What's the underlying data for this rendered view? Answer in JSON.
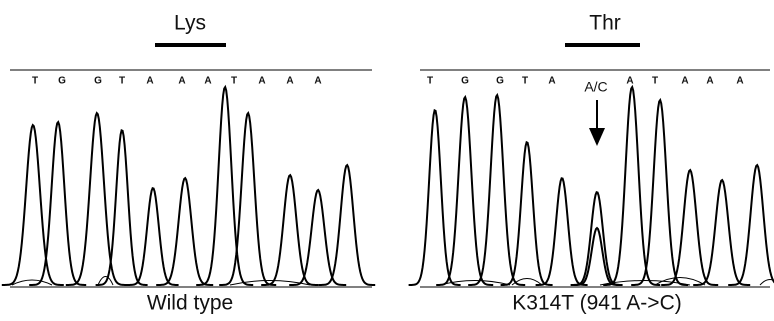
{
  "panels": [
    {
      "label": "Lys",
      "bases": [
        "T",
        "G",
        "G",
        "T",
        "A",
        "A",
        "A",
        "T",
        "A",
        "A",
        "A"
      ],
      "caption": "Wild type"
    },
    {
      "label": "Thr",
      "bases": [
        "T",
        "G",
        "G",
        "T",
        "A",
        "A",
        "T",
        "A",
        "A",
        "A"
      ],
      "annotation": "A/C",
      "caption": "K314T (941 A->C)"
    }
  ]
}
